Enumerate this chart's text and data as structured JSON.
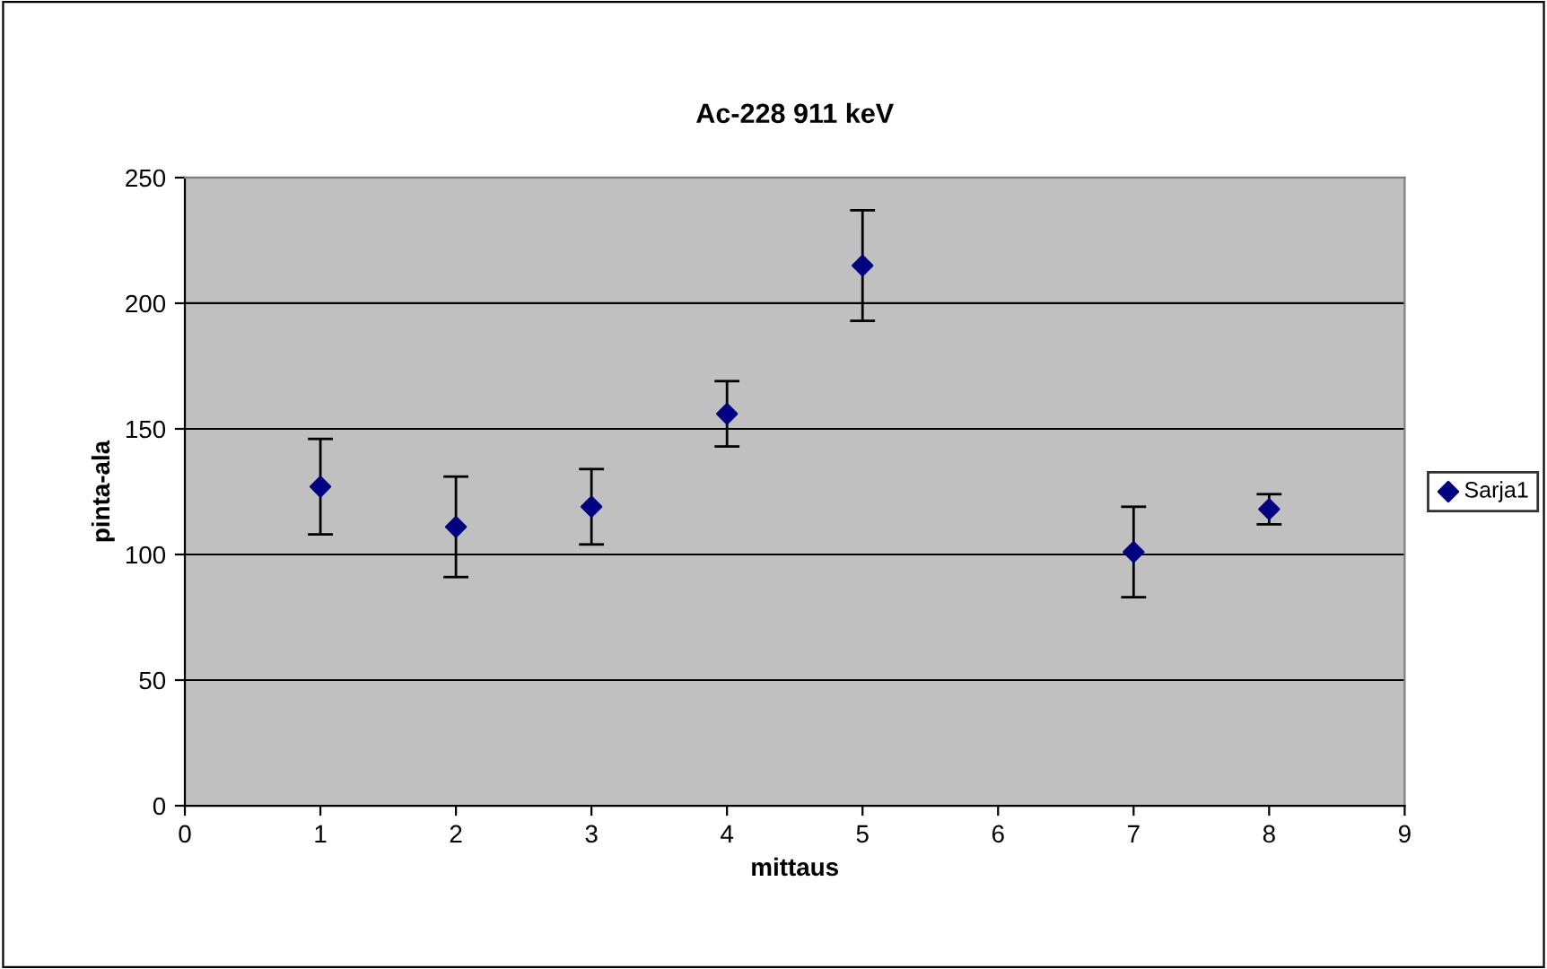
{
  "chart_data": {
    "type": "scatter",
    "title": "Ac-228 911 keV",
    "xlabel": "mittaus",
    "ylabel": "pinta-ala",
    "x": [
      1,
      2,
      3,
      4,
      5,
      7,
      8
    ],
    "series": [
      {
        "name": "Sarja1",
        "color": "#000080",
        "values": [
          127,
          111,
          119,
          156,
          215,
          101,
          118
        ],
        "errors": [
          19,
          20,
          15,
          13,
          22,
          18,
          6
        ]
      }
    ],
    "xlim": [
      0,
      9
    ],
    "xticks": [
      0,
      1,
      2,
      3,
      4,
      5,
      6,
      7,
      8,
      9
    ],
    "ylim": [
      0,
      250
    ],
    "yticks": [
      0,
      50,
      100,
      150,
      200,
      250
    ],
    "grid": "y",
    "legend": "right",
    "marker": "diamond"
  }
}
